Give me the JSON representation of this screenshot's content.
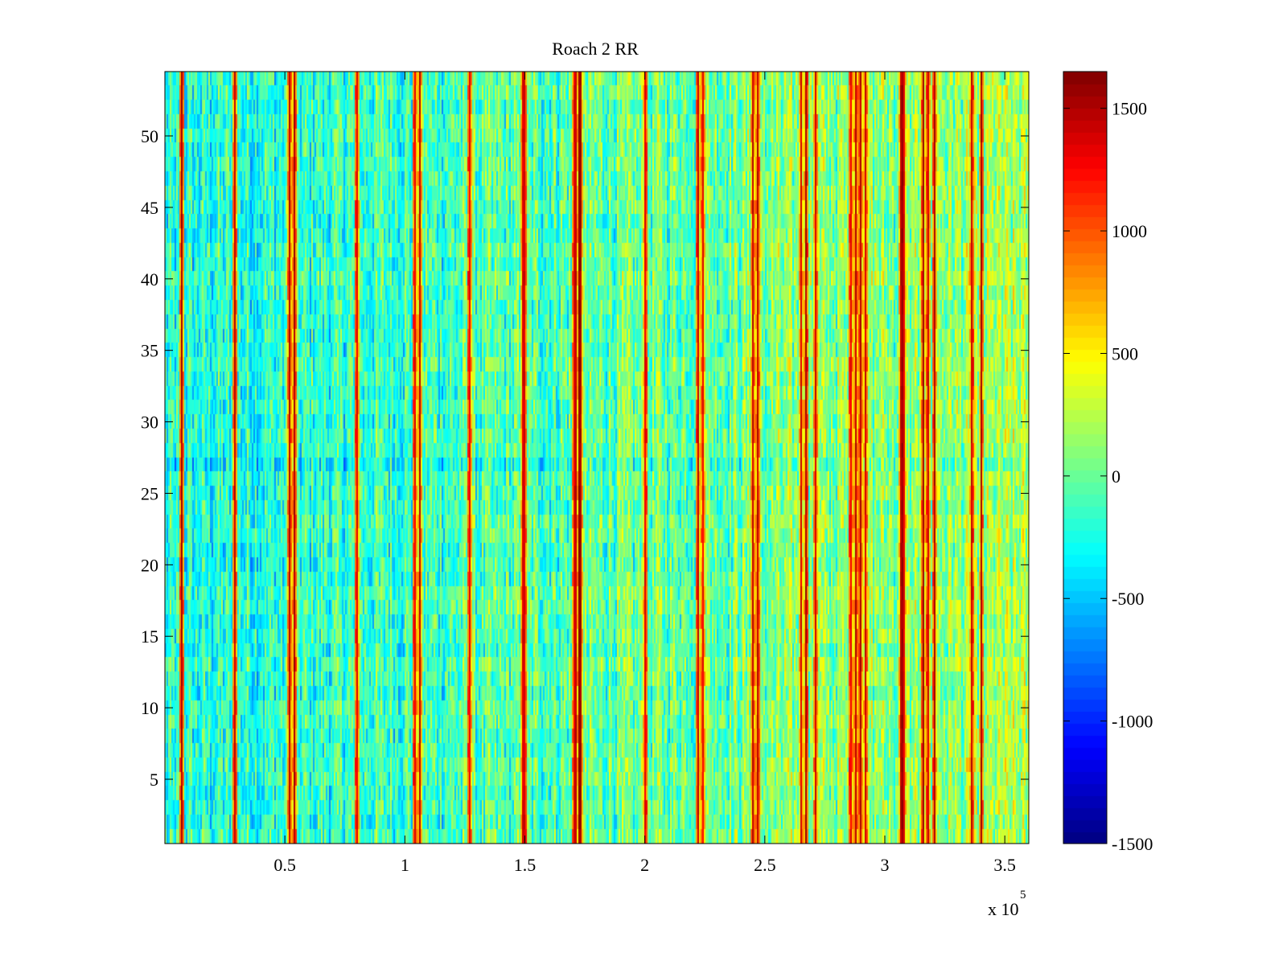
{
  "chart_data": {
    "type": "heatmap",
    "title": "Roach 2 RR",
    "xlabel": "",
    "ylabel": "",
    "x_multiplier_label": "x 10",
    "x_multiplier_exponent": "5",
    "xlim": [
      0,
      3.6
    ],
    "ylim": [
      0.5,
      54.5
    ],
    "rows": 54,
    "x_ticks": [
      {
        "value": 0.5,
        "label": "0.5"
      },
      {
        "value": 1,
        "label": "1"
      },
      {
        "value": 1.5,
        "label": "1.5"
      },
      {
        "value": 2,
        "label": "2"
      },
      {
        "value": 2.5,
        "label": "2.5"
      },
      {
        "value": 3,
        "label": "3"
      },
      {
        "value": 3.5,
        "label": "3.5"
      }
    ],
    "y_ticks": [
      {
        "value": 5,
        "label": "5"
      },
      {
        "value": 10,
        "label": "10"
      },
      {
        "value": 15,
        "label": "15"
      },
      {
        "value": 20,
        "label": "20"
      },
      {
        "value": 25,
        "label": "25"
      },
      {
        "value": 30,
        "label": "30"
      },
      {
        "value": 35,
        "label": "35"
      },
      {
        "value": 40,
        "label": "40"
      },
      {
        "value": 45,
        "label": "45"
      },
      {
        "value": 50,
        "label": "50"
      }
    ],
    "colorbar": {
      "colormap": "jet",
      "clim": [
        -1500,
        1650
      ],
      "ticks": [
        {
          "value": 1500,
          "label": "1500"
        },
        {
          "value": 1000,
          "label": "1000"
        },
        {
          "value": 500,
          "label": "500"
        },
        {
          "value": 0,
          "label": "0"
        },
        {
          "value": -500,
          "label": "-500"
        },
        {
          "value": -1000,
          "label": "-1000"
        },
        {
          "value": -1500,
          "label": "-1500"
        }
      ]
    },
    "typical_value_range": [
      -800,
      400
    ],
    "high_value_stripes_x": [
      0.07,
      0.29,
      0.52,
      0.54,
      0.8,
      1.04,
      1.06,
      1.27,
      1.49,
      1.5,
      1.71,
      1.73,
      2.0,
      2.22,
      2.24,
      2.45,
      2.47,
      2.65,
      2.67,
      2.71,
      2.86,
      2.88,
      2.9,
      2.92,
      3.07,
      3.08,
      3.16,
      3.18,
      3.21,
      3.36,
      3.4
    ]
  }
}
